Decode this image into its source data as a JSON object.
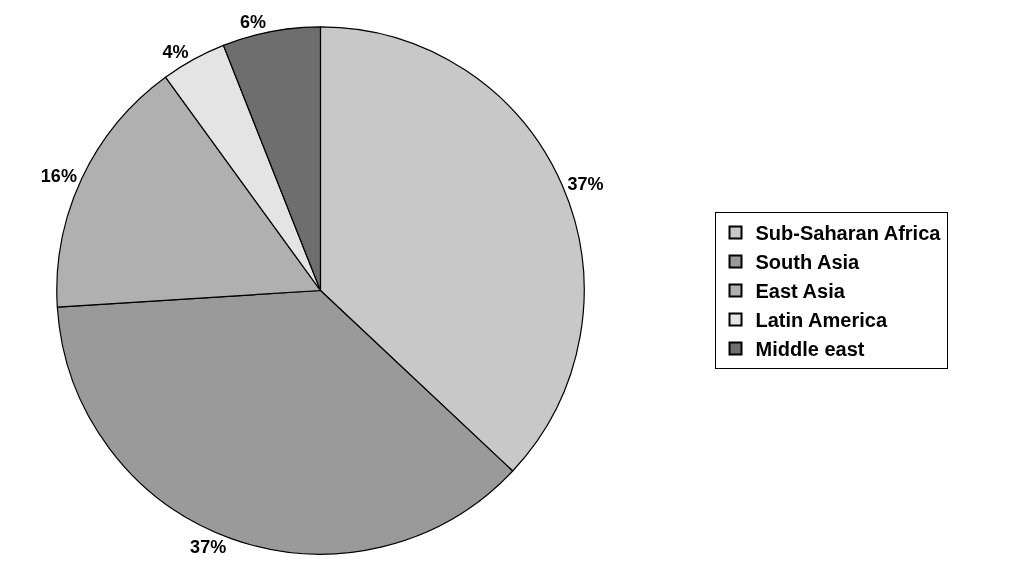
{
  "chart_data": {
    "type": "pie",
    "categories": [
      "Sub-Saharan Africa",
      "South Asia",
      "East Asia",
      "Latin America",
      "Middle east"
    ],
    "values": [
      37,
      37,
      16,
      4,
      6
    ],
    "colors": [
      "#c8c8c8",
      "#9a9a9a",
      "#b0b0b0",
      "#e4e4e4",
      "#6e6e6e"
    ],
    "value_labels": [
      "37%",
      "37%",
      "16%",
      "4%",
      "6%"
    ],
    "legend": "right"
  }
}
